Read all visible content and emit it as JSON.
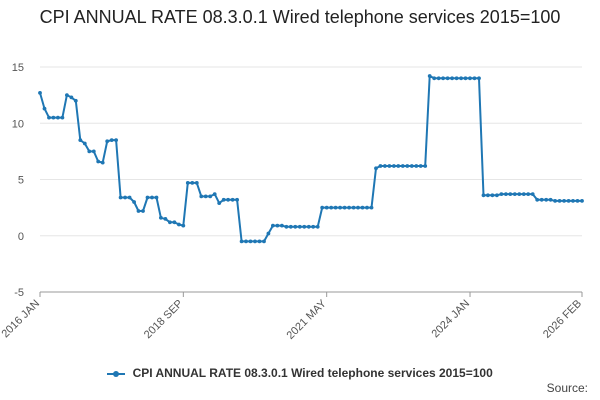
{
  "title": "CPI ANNUAL RATE 08.3.0.1 Wired telephone services 2015=100",
  "source_label": "Source:",
  "colors": {
    "series": "#1f77b4",
    "grid": "#e6e6e6",
    "axis": "#999999"
  },
  "chart_data": {
    "type": "line",
    "title": "CPI ANNUAL RATE 08.3.0.1 Wired telephone services 2015=100",
    "xlabel": "",
    "ylabel": "",
    "ylim": [
      -5,
      15
    ],
    "yticks": [
      -5,
      0,
      5,
      10,
      15
    ],
    "xticks": [
      {
        "label": "2016 JAN",
        "index": 0
      },
      {
        "label": "2018 SEP",
        "index": 32
      },
      {
        "label": "2021 MAY",
        "index": 64
      },
      {
        "label": "2024 JAN",
        "index": 96
      },
      {
        "label": "2026 FEB",
        "index": 121
      }
    ],
    "legend": "bottom",
    "series": [
      {
        "name": "CPI ANNUAL RATE 08.3.0.1 Wired telephone services 2015=100",
        "values": [
          12.7,
          11.3,
          10.5,
          10.5,
          10.5,
          10.5,
          12.5,
          12.3,
          12.0,
          8.5,
          8.2,
          7.5,
          7.5,
          6.6,
          6.5,
          8.4,
          8.5,
          8.5,
          3.4,
          3.4,
          3.4,
          3.0,
          2.2,
          2.2,
          3.4,
          3.4,
          3.4,
          1.6,
          1.5,
          1.2,
          1.2,
          1.0,
          0.9,
          4.7,
          4.7,
          4.7,
          3.5,
          3.5,
          3.5,
          3.7,
          2.9,
          3.2,
          3.2,
          3.2,
          3.2,
          -0.5,
          -0.5,
          -0.5,
          -0.5,
          -0.5,
          -0.5,
          0.2,
          0.9,
          0.9,
          0.9,
          0.8,
          0.8,
          0.8,
          0.8,
          0.8,
          0.8,
          0.8,
          0.8,
          2.5,
          2.5,
          2.5,
          2.5,
          2.5,
          2.5,
          2.5,
          2.5,
          2.5,
          2.5,
          2.5,
          2.5,
          6.0,
          6.2,
          6.2,
          6.2,
          6.2,
          6.2,
          6.2,
          6.2,
          6.2,
          6.2,
          6.2,
          6.2,
          14.2,
          14.0,
          14.0,
          14.0,
          14.0,
          14.0,
          14.0,
          14.0,
          14.0,
          14.0,
          14.0,
          14.0,
          3.6,
          3.6,
          3.6,
          3.6,
          3.7,
          3.7,
          3.7,
          3.7,
          3.7,
          3.7,
          3.7,
          3.7,
          3.2,
          3.2,
          3.2,
          3.2,
          3.1,
          3.1,
          3.1,
          3.1,
          3.1,
          3.1,
          3.1
        ]
      }
    ]
  }
}
